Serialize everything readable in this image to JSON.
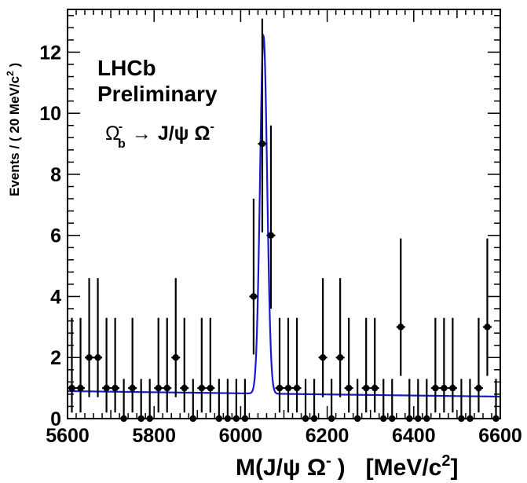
{
  "chart_data": {
    "type": "scatter",
    "xlabel": {
      "base": "M(J/ψ Ω",
      "sup1": "-",
      "close": ")",
      "unit": "[MeV/c",
      "sup2": "2",
      "unit_close": "]"
    },
    "ylabel": {
      "base": "Events / ( 20 MeV/c",
      "sup": "2",
      "close": " )"
    },
    "annotations": {
      "experiment": "LHCb",
      "status": "Preliminary",
      "decay": {
        "parent": "Ω",
        "parent_sup": "-",
        "parent_sub": "b",
        "arrow": "→",
        "products": "J/ψ Ω",
        "products_sup": "-"
      }
    },
    "xlim": [
      5600,
      6600
    ],
    "ylim": [
      0,
      13.4
    ],
    "x_ticks": [
      5600,
      5800,
      6000,
      6200,
      6400,
      6600
    ],
    "y_ticks": [
      0,
      2,
      4,
      6,
      8,
      10,
      12
    ],
    "grid": false,
    "bin_width": 20,
    "data": {
      "x": [
        5610,
        5630,
        5650,
        5670,
        5690,
        5710,
        5730,
        5750,
        5770,
        5790,
        5810,
        5830,
        5850,
        5870,
        5890,
        5910,
        5930,
        5950,
        5970,
        5990,
        6010,
        6030,
        6050,
        6070,
        6090,
        6110,
        6130,
        6150,
        6170,
        6190,
        6210,
        6230,
        6250,
        6270,
        6290,
        6310,
        6330,
        6350,
        6370,
        6390,
        6410,
        6430,
        6450,
        6470,
        6490,
        6510,
        6530,
        6550,
        6570,
        6590
      ],
      "y": [
        1,
        1,
        2,
        2,
        1,
        1,
        0,
        1,
        0,
        0,
        1,
        1,
        2,
        1,
        0,
        1,
        1,
        0,
        0,
        0,
        0,
        4,
        9,
        6,
        1,
        1,
        1,
        0,
        0,
        2,
        0,
        2,
        1,
        0,
        1,
        1,
        0,
        0,
        3,
        0,
        0,
        0,
        1,
        1,
        1,
        0,
        0,
        1,
        3,
        0
      ],
      "err_hi": [
        2.3,
        2.3,
        2.6,
        2.6,
        2.3,
        2.3,
        1.3,
        2.3,
        1.3,
        1.3,
        2.3,
        2.3,
        2.6,
        2.3,
        1.3,
        2.3,
        2.3,
        1.3,
        1.3,
        1.3,
        1.3,
        3.2,
        4.1,
        3.6,
        2.3,
        2.3,
        2.3,
        1.3,
        1.3,
        2.6,
        1.3,
        2.6,
        2.3,
        1.3,
        2.3,
        2.3,
        1.3,
        1.3,
        2.9,
        1.3,
        1.3,
        1.3,
        2.3,
        2.3,
        2.3,
        1.3,
        1.3,
        2.3,
        2.9,
        1.3
      ],
      "err_lo": [
        0.8,
        0.8,
        1.3,
        1.3,
        0.8,
        0.8,
        0,
        0.8,
        0,
        0,
        0.8,
        0.8,
        1.3,
        0.8,
        0,
        0.8,
        0.8,
        0,
        0,
        0,
        0,
        1.9,
        2.9,
        2.4,
        0.8,
        0.8,
        0.8,
        0,
        0,
        1.3,
        0,
        1.3,
        0.8,
        0,
        0.8,
        0.8,
        0,
        0,
        1.6,
        0,
        0,
        0,
        0.8,
        0.8,
        0.8,
        0,
        0,
        0.8,
        1.6,
        0
      ]
    },
    "fit": {
      "color": "#1a1acc",
      "background_start": 0.9,
      "background_end": 0.72,
      "signal_mean": 6053,
      "signal_sigma": 8.2,
      "signal_amplitude": 11.7
    }
  }
}
